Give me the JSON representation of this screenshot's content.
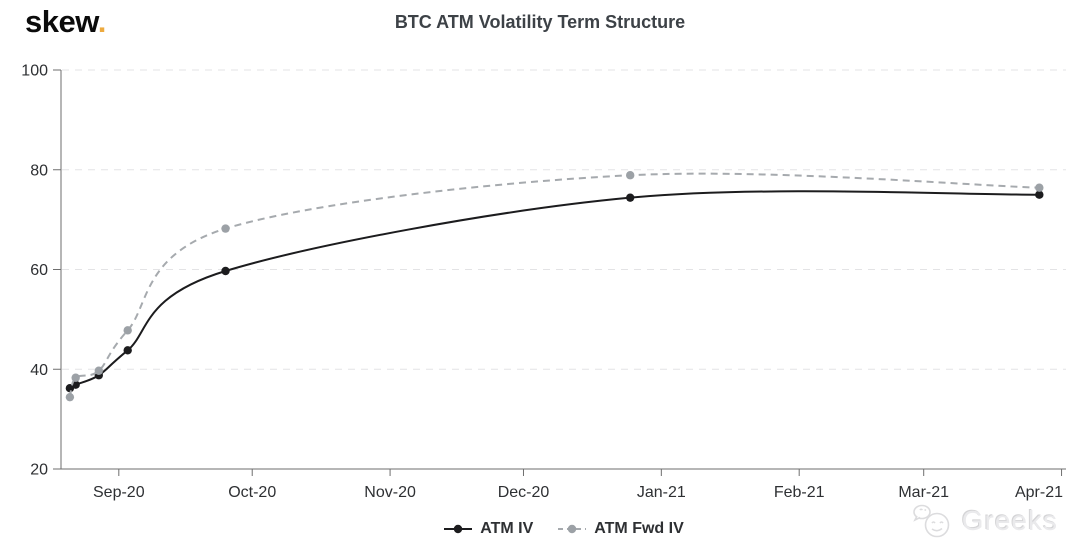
{
  "header": {
    "logo_text": "skew",
    "logo_dot": ".",
    "title": "BTC ATM Volatility Term Structure"
  },
  "legend": {
    "atm_iv_label": "ATM IV",
    "atm_fwd_iv_label": "ATM Fwd IV"
  },
  "watermark": {
    "text": "Greeks",
    "icon": "wechat-smiley-icon"
  },
  "colors": {
    "background": "#ffffff",
    "logo_dot_accent": "#edaa3f",
    "title_text": "#3d4247",
    "axis_text": "#2e3033",
    "axis_line": "#6e6e6e",
    "gridline": "#e3e3e5",
    "atm_iv": "#1c1c1e",
    "atm_fwd_iv": "#a6aaae",
    "atm_fwd_iv_marker": "#9ca1a6",
    "watermark_text": "#eaeaec"
  },
  "chart_data": {
    "type": "line",
    "title": "BTC ATM Volatility Term Structure",
    "xlabel": "",
    "ylabel": "",
    "ylim": [
      20,
      100
    ],
    "y_ticks": [
      20,
      40,
      60,
      80,
      100
    ],
    "grid": "horizontal dashed gridlines at y ticks",
    "legend_position": "bottom-center",
    "x_domain_days": [
      0,
      226
    ],
    "x_axis_start_date": "2020-08-19",
    "x_tick_labels": [
      "Sep-20",
      "Oct-20",
      "Nov-20",
      "Dec-20",
      "Jan-21",
      "Feb-21",
      "Mar-21",
      "Apr-21"
    ],
    "x_tick_days": [
      13,
      43,
      74,
      104,
      135,
      166,
      194,
      225
    ],
    "x_days": [
      2,
      3.3,
      8.5,
      15,
      37,
      128,
      220
    ],
    "x_dates_estimated": [
      "2020-08-21",
      "2020-08-22",
      "2020-08-27",
      "2020-09-03",
      "2020-09-25",
      "2020-12-25",
      "2021-03-26"
    ],
    "series": [
      {
        "name": "ATM IV",
        "line_style": "solid",
        "color": "#1c1c1e",
        "marker_color": "#1c1c1e",
        "values": [
          36.2,
          36.9,
          38.8,
          43.8,
          59.7,
          74.4,
          75.0
        ]
      },
      {
        "name": "ATM Fwd IV",
        "line_style": "dashed",
        "color": "#a6aaae",
        "marker_color": "#9ca1a6",
        "values": [
          34.4,
          38.3,
          39.7,
          47.8,
          68.2,
          78.9,
          76.4
        ]
      }
    ]
  }
}
